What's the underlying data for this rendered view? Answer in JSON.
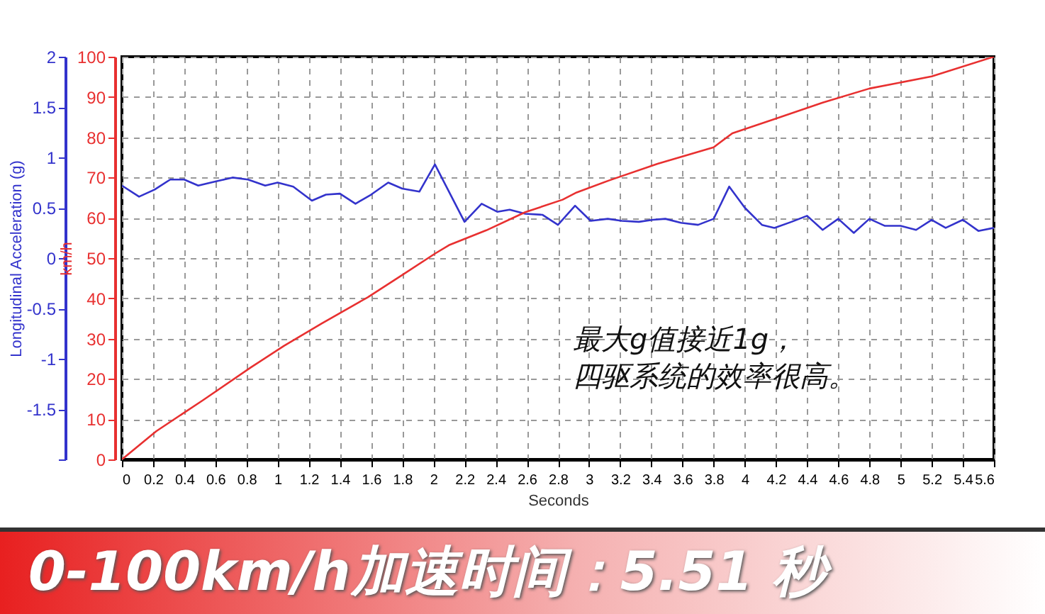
{
  "chart_data": {
    "type": "line",
    "xlabel": "Seconds",
    "ylabel": "Longitudinal Acceleration (g)",
    "y2label": "km/h",
    "xlim": [
      0,
      5.6
    ],
    "xticks": [
      0,
      0.2,
      0.4,
      0.6,
      0.8,
      1,
      1.2,
      1.4,
      1.6,
      1.8,
      2,
      2.2,
      2.4,
      2.6,
      2.8,
      3,
      3.2,
      3.4,
      3.6,
      3.8,
      4,
      4.2,
      4.4,
      4.6,
      4.8,
      5,
      5.2,
      5.4,
      5.6
    ],
    "ylim": [
      -2,
      2
    ],
    "yticks": [
      {
        "value": -2,
        "label": null
      },
      -1.5,
      -1,
      -0.5,
      0,
      0.5,
      1,
      1.5,
      2
    ],
    "y2lim": [
      0,
      100
    ],
    "y2ticks": [
      0,
      10,
      20,
      30,
      40,
      50,
      60,
      70,
      80,
      90,
      100
    ],
    "grid": true,
    "line_style": "solid",
    "series": [
      {
        "color": "#3333cc",
        "x": [
          0,
          0.11,
          0.21,
          0.31,
          0.4,
          0.49,
          0.6,
          0.71,
          0.81,
          0.92,
          1.0,
          1.1,
          1.22,
          1.31,
          1.4,
          1.5,
          1.6,
          1.71,
          1.8,
          1.91,
          2.01,
          2.2,
          2.31,
          2.41,
          2.49,
          2.59,
          2.7,
          2.8,
          2.91,
          3.01,
          3.12,
          3.21,
          3.32,
          3.41,
          3.49,
          3.59,
          3.7,
          3.8,
          3.9,
          4.0,
          4.11,
          4.19,
          4.3,
          4.4,
          4.5,
          4.6,
          4.7,
          4.8,
          4.9,
          5.0,
          5.1,
          5.2,
          5.29,
          5.4,
          5.5,
          5.6
        ],
        "values": [
          0.72,
          0.61,
          0.68,
          0.78,
          0.78,
          0.72,
          0.76,
          0.8,
          0.78,
          0.72,
          0.75,
          0.71,
          0.57,
          0.63,
          0.64,
          0.54,
          0.63,
          0.75,
          0.69,
          0.66,
          0.93,
          0.36,
          0.54,
          0.46,
          0.48,
          0.44,
          0.43,
          0.33,
          0.52,
          0.37,
          0.39,
          0.37,
          0.36,
          0.38,
          0.39,
          0.35,
          0.33,
          0.39,
          0.71,
          0.5,
          0.33,
          0.3,
          0.36,
          0.42,
          0.28,
          0.39,
          0.25,
          0.39,
          0.32,
          0.32,
          0.28,
          0.38,
          0.3,
          0.38,
          0.27,
          0.3
        ]
      },
      {
        "color": "#e83030",
        "axis": "y2",
        "x": [
          0,
          0.22,
          0.52,
          0.83,
          1.04,
          1.28,
          1.58,
          1.8,
          2.01,
          2.1,
          2.34,
          2.59,
          2.83,
          2.92,
          3.13,
          3.44,
          3.8,
          3.92,
          4.19,
          4.5,
          4.8,
          5.2,
          5.6
        ],
        "values": [
          0,
          7,
          14.7,
          22.9,
          28.2,
          33.7,
          40.3,
          45.8,
          51.1,
          53.2,
          56.9,
          61.4,
          64.5,
          66.3,
          69.3,
          73.4,
          77.5,
          81,
          84.5,
          88.6,
          92.1,
          95.1,
          100
        ]
      }
    ],
    "annotations": [
      "最大g值接近1g，",
      "四驱系统的效率很高。",
      "0-100km/h加速时间：5.51 秒"
    ]
  }
}
